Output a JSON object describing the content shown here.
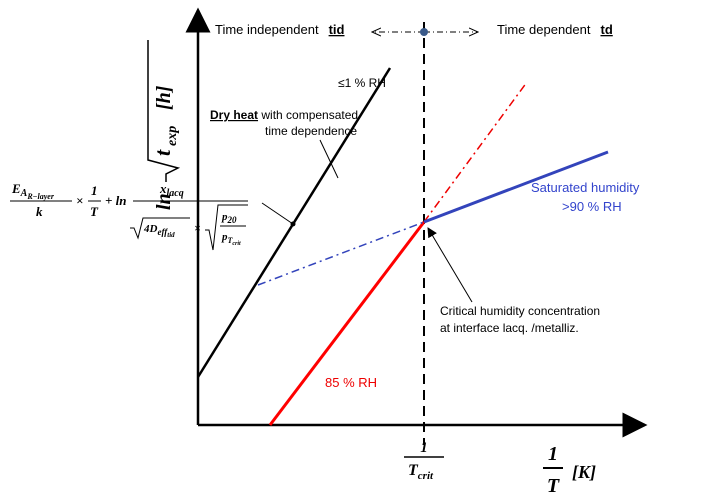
{
  "y_label": {
    "prefix": "ln",
    "radicand": "t",
    "subscript": "exp",
    "unit": "[h]"
  },
  "x_label": {
    "numerator": "1",
    "denominator": "T",
    "unit": "[K]"
  },
  "t_crit": {
    "numerator": "1",
    "denominator": "T",
    "subscript": "crit"
  },
  "regions": {
    "left": "Time independent",
    "left_code": "tid",
    "right": "Time dependent",
    "right_code": "td"
  },
  "labels": {
    "dry_rh": "≤1 % RH",
    "dry_heat": "Dry heat",
    "dry_line1": " with compensated",
    "dry_line2": "time dependence",
    "saturated": "Saturated humidity",
    "saturated_rh": ">90 % RH",
    "critical_line1": "Critical humidity concentration",
    "critical_line2": "at interface lacq. /metalliz.",
    "rh85": "85 % RH"
  },
  "formula": {
    "e": "E",
    "e_sub": "A",
    "e_subsub": "R−layer",
    "k": "k",
    "times1": "×",
    "one": "1",
    "t": "T",
    "plus_ln": "+ ln",
    "x": "x",
    "x_sub": "lacq",
    "d": "4D",
    "d_sub": "eff",
    "d_subsub": "tid",
    "times2": "×",
    "p": "p",
    "p_sub": "20",
    "pt": "p",
    "pt_sub": "T",
    "pt_subsub": "crit"
  }
}
